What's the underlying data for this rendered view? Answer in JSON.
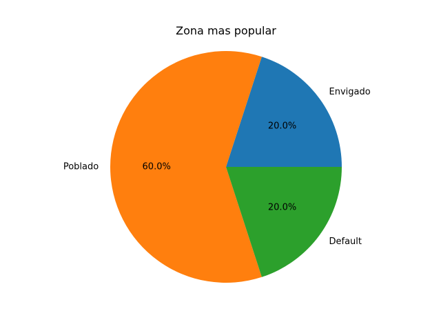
{
  "chart_data": {
    "type": "pie",
    "title": "Zona mas popular",
    "start_angle_deg": 0,
    "direction": "counterclockwise",
    "slices": [
      {
        "label": "Envigado",
        "value": 20.0,
        "pct_label": "20.0%",
        "color": "#1f77b4"
      },
      {
        "label": "Poblado",
        "value": 60.0,
        "pct_label": "60.0%",
        "color": "#ff7f0e"
      },
      {
        "label": "Default",
        "value": 20.0,
        "pct_label": "20.0%",
        "color": "#2ca02c"
      }
    ]
  }
}
